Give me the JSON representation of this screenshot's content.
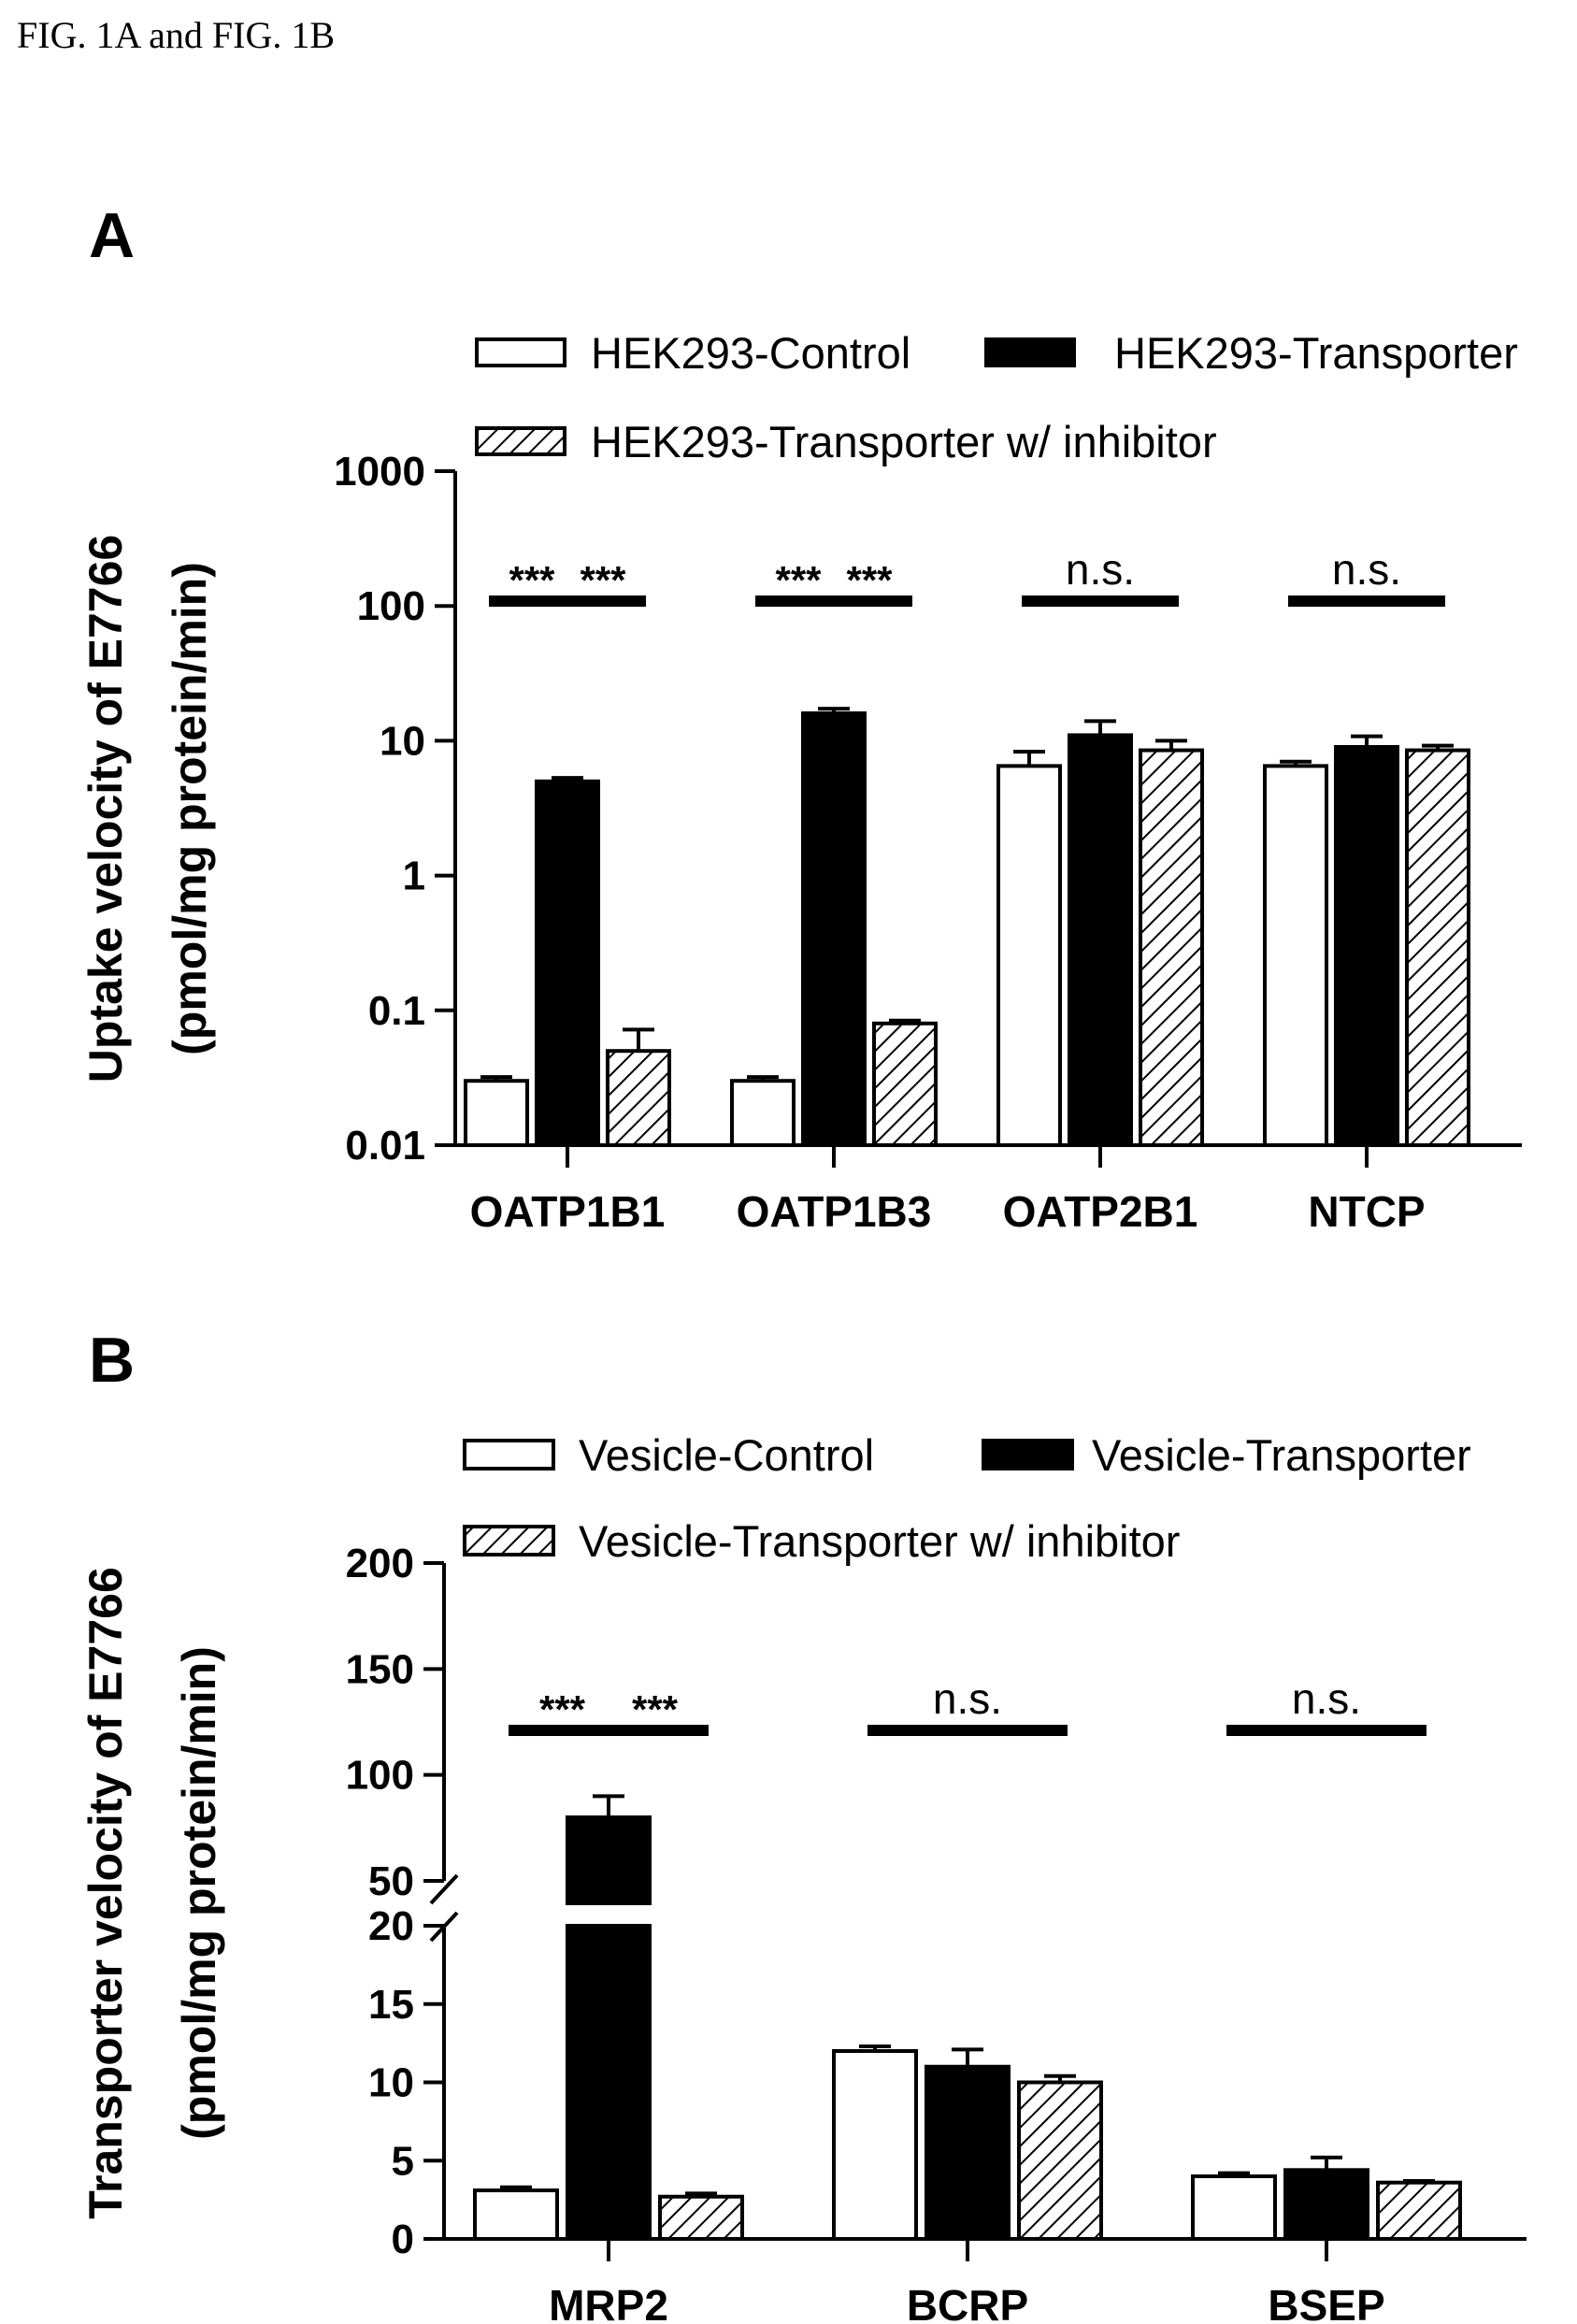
{
  "header": "FIG. 1A and FIG. 1B",
  "colors": {
    "ink": "#000000",
    "paper": "#ffffff"
  },
  "chart_data": [
    {
      "panel": "A",
      "type": "bar",
      "title": "",
      "ylabel": [
        "Uptake velocity of E7766",
        "(pmol/mg protein/min)"
      ],
      "xlabel": "",
      "yscale": "log",
      "ylim": [
        0.01,
        1000
      ],
      "yticks": [
        0.01,
        0.1,
        1,
        10,
        100,
        1000
      ],
      "ytick_labels": [
        "0.01",
        "0.1",
        "1",
        "10",
        "100",
        "1000"
      ],
      "categories": [
        "OATP1B1",
        "OATP1B3",
        "OATP2B1",
        "NTCP"
      ],
      "legend": {
        "placement": "top"
      },
      "series": [
        {
          "name": "HEK293-Control",
          "fill": "white",
          "values": [
            0.03,
            0.03,
            6.5,
            6.5
          ],
          "errors": [
            0.002,
            0.002,
            1.8,
            0.5
          ]
        },
        {
          "name": "HEK293-Transporter",
          "fill": "black",
          "values": [
            5.0,
            16.0,
            11.0,
            9.0
          ],
          "errors": [
            0.3,
            1.3,
            3.0,
            1.8
          ]
        },
        {
          "name": "HEK293-Transporter w/ inhibitor",
          "fill": "hatched",
          "values": [
            0.05,
            0.08,
            8.5,
            8.5
          ],
          "errors": [
            0.022,
            0.004,
            1.5,
            0.7
          ]
        }
      ],
      "annotations": [
        {
          "text": "***",
          "from": [
            0,
            0
          ],
          "to": [
            0,
            1
          ]
        },
        {
          "text": "***",
          "from": [
            0,
            1
          ],
          "to": [
            0,
            2
          ]
        },
        {
          "text": "***",
          "from": [
            1,
            0
          ],
          "to": [
            1,
            1
          ]
        },
        {
          "text": "***",
          "from": [
            1,
            1
          ],
          "to": [
            1,
            2
          ]
        },
        {
          "text": "n.s.",
          "from": [
            2,
            0
          ],
          "to": [
            2,
            2
          ]
        },
        {
          "text": "n.s.",
          "from": [
            3,
            0
          ],
          "to": [
            3,
            2
          ]
        }
      ]
    },
    {
      "panel": "B",
      "type": "bar",
      "title": "",
      "ylabel": [
        "Transporter velocity of E7766",
        "(pmol/mg protein/min)"
      ],
      "xlabel": "",
      "yscale": "broken-linear",
      "ylim": [
        0,
        200
      ],
      "axis_break": [
        20,
        50
      ],
      "yticks": [
        0,
        5,
        10,
        15,
        20,
        50,
        100,
        150,
        200
      ],
      "ytick_labels": [
        "0",
        "5",
        "10",
        "15",
        "20",
        "50",
        "100",
        "150",
        "200"
      ],
      "categories": [
        "MRP2",
        "BCRP",
        "BSEP"
      ],
      "legend": {
        "placement": "top"
      },
      "series": [
        {
          "name": "Vesicle-Control",
          "fill": "white",
          "values": [
            3.1,
            12.0,
            4.0
          ],
          "errors": [
            0.2,
            0.3,
            0.2
          ]
        },
        {
          "name": "Vesicle-Transporter",
          "fill": "black",
          "values": [
            80,
            11.0,
            4.4
          ],
          "errors": [
            10,
            1.1,
            0.8
          ]
        },
        {
          "name": "Vesicle-Transporter w/ inhibitor",
          "fill": "hatched",
          "values": [
            2.7,
            10.0,
            3.6
          ],
          "errors": [
            0.2,
            0.4,
            0.1
          ]
        }
      ],
      "annotations": [
        {
          "text": "***",
          "from": [
            0,
            0
          ],
          "to": [
            0,
            1
          ]
        },
        {
          "text": "***",
          "from": [
            0,
            1
          ],
          "to": [
            0,
            2
          ]
        },
        {
          "text": "n.s.",
          "from": [
            1,
            0
          ],
          "to": [
            1,
            2
          ]
        },
        {
          "text": "n.s.",
          "from": [
            2,
            0
          ],
          "to": [
            2,
            2
          ]
        }
      ]
    }
  ]
}
